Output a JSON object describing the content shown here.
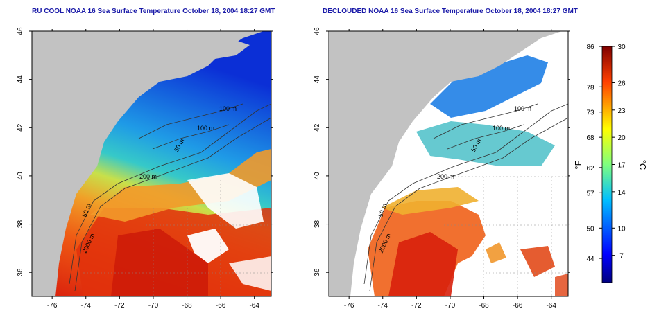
{
  "titles": {
    "left": "RU COOL NOAA 16 Sea Surface Temperature October 18, 2004 18:27 GMT",
    "right": "DECLOUDED NOAA 16 Sea Surface Temperature October 18, 2004 18:27 GMT"
  },
  "axes": {
    "x_ticks": [
      "-76",
      "-74",
      "-72",
      "-70",
      "-68",
      "-66",
      "-64"
    ],
    "y_ticks": [
      "36",
      "38",
      "40",
      "42",
      "44",
      "46"
    ],
    "lon_range": [
      -77.2,
      -63.0
    ],
    "lat_range": [
      35.0,
      46.0
    ]
  },
  "isobath_labels": {
    "left": [
      "100 m",
      "100 m",
      "50 m",
      "200 m",
      "50 m",
      "2000 m"
    ],
    "right": [
      "100 m",
      "100 m",
      "50 m",
      "200 m",
      "50 m",
      "2000 m"
    ]
  },
  "colorbar": {
    "fahrenheit_ticks": [
      "86",
      "78",
      "73",
      "68",
      "62",
      "57",
      "50",
      "44"
    ],
    "celsius_ticks": [
      "30",
      "26",
      "23",
      "20",
      "17",
      "14",
      "10",
      "7"
    ],
    "fahrenheit_unit": "°F",
    "celsius_unit": "°C",
    "range_c": [
      4,
      30
    ]
  },
  "colors": {
    "title": "#1a1aa8",
    "land": "#c2c2c2",
    "cloud": "#ffffff",
    "cold": "#0b1fcf",
    "cool": "#1f9be6",
    "mild": "#5fd29a",
    "warm_yellow": "#f0d23c",
    "warm_orange": "#f0901e",
    "hot": "#d81c0c"
  }
}
